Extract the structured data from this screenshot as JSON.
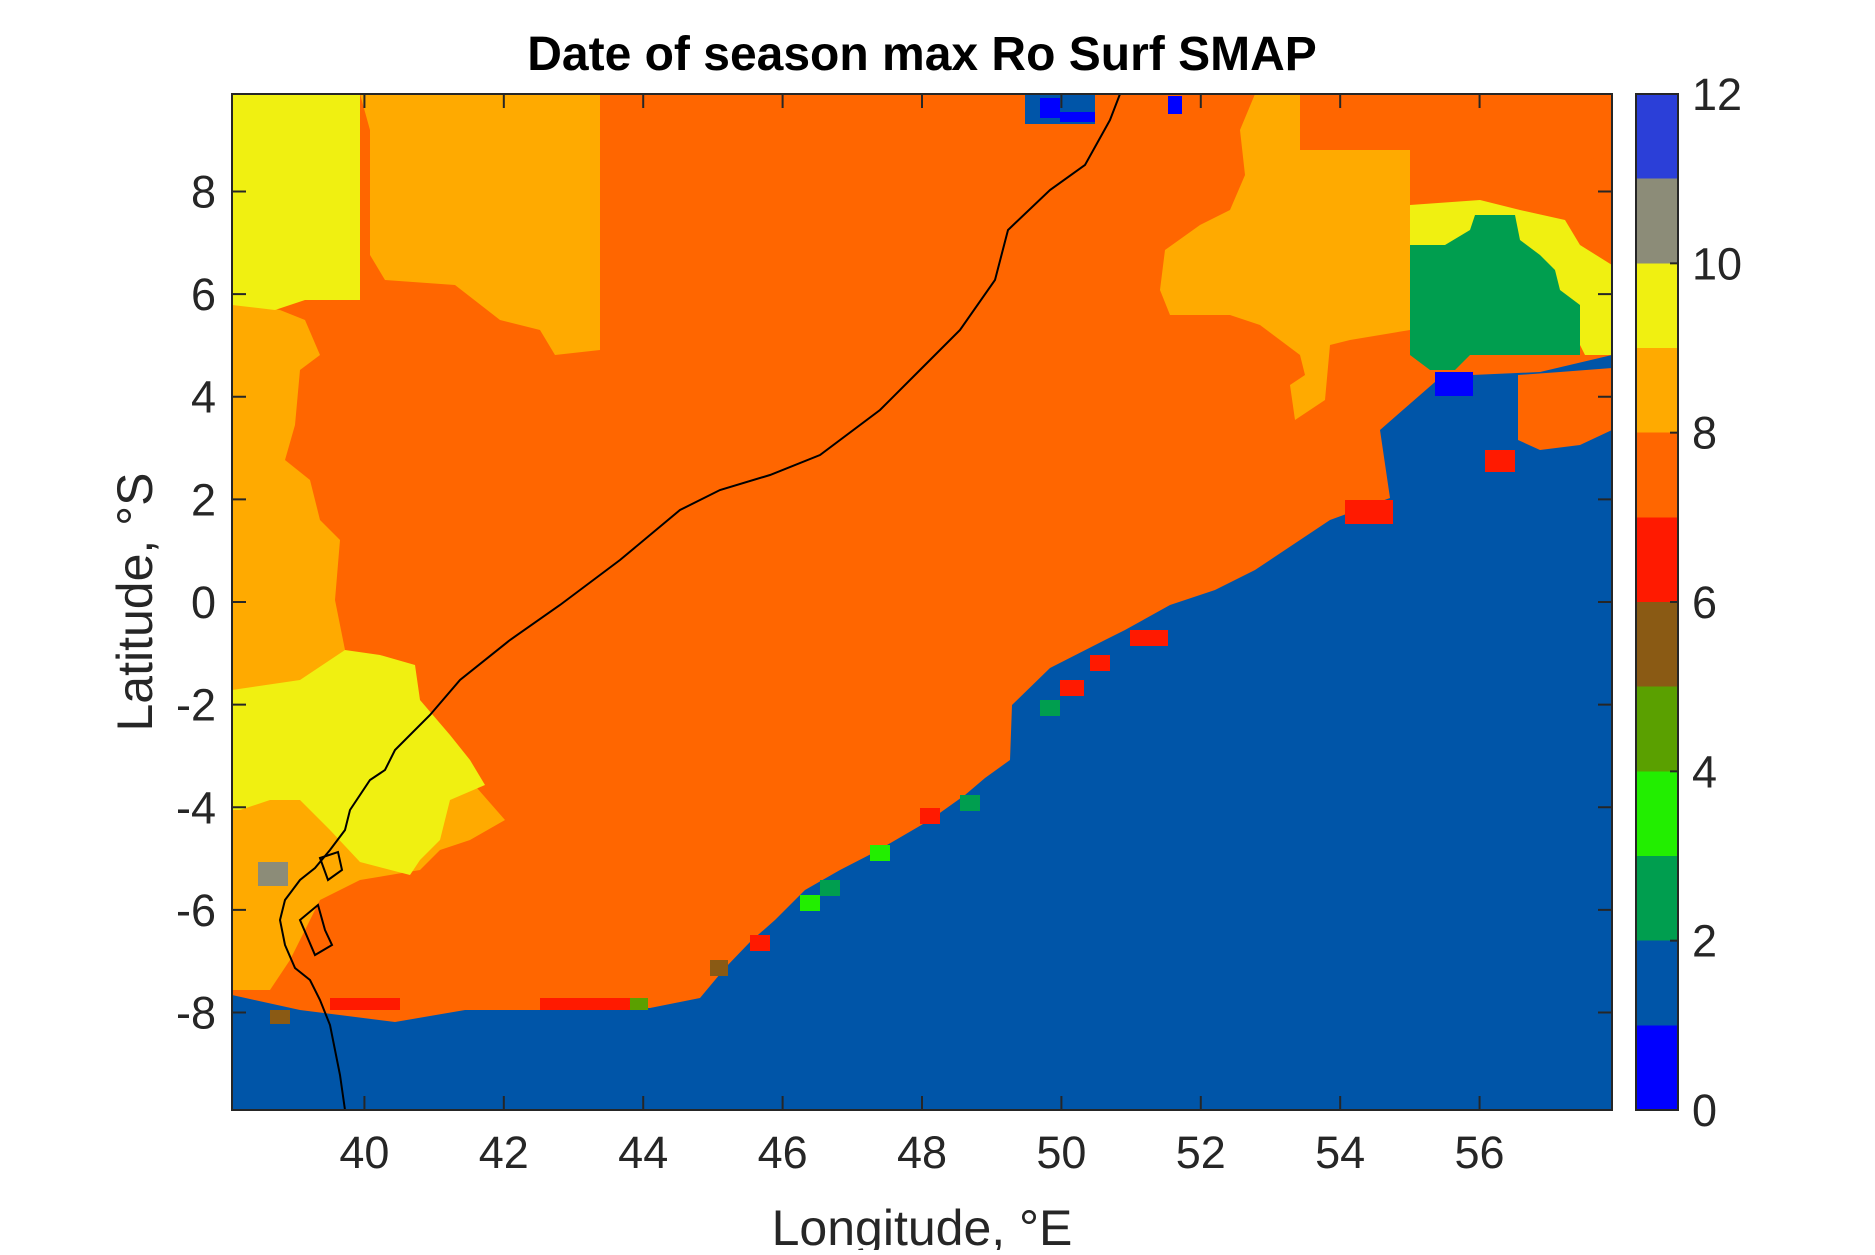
{
  "chart_data": {
    "type": "heatmap",
    "title": "Date of season max Ro Surf SMAP",
    "xlabel": "Longitude, °E",
    "ylabel": "Latitude, °S",
    "xlim": [
      38.1,
      57.9
    ],
    "ylim": [
      -9.9,
      9.9
    ],
    "x_ticks": [
      40,
      42,
      44,
      46,
      48,
      50,
      52,
      54,
      56
    ],
    "y_ticks": [
      8,
      6,
      4,
      2,
      0,
      -2,
      -4,
      -6,
      -8
    ],
    "y_tick_labels": [
      "8",
      "6",
      "4",
      "2",
      "0",
      "-2",
      "-4",
      "-6",
      "-8"
    ],
    "colorbar": {
      "min": 0,
      "max": 12,
      "ticks": [
        "0",
        "2",
        "4",
        "6",
        "8",
        "10",
        "12"
      ],
      "colormap": [
        "#0000ff",
        "#0055a8",
        "#009e4f",
        "#22ee00",
        "#5aa000",
        "#8a5a14",
        "#ff1a00",
        "#ff6600",
        "#ffaa00",
        "#f0f011",
        "#8c8c78",
        "#2b3fd8"
      ]
    },
    "regions": [
      {
        "name": "ocean",
        "value": 1,
        "color": "#0055a8"
      },
      {
        "name": "inland",
        "value": 7.5,
        "color": "#ff6600"
      },
      {
        "name": "west-upland",
        "value": 8.3,
        "color": "#ffaa00"
      },
      {
        "name": "northwest-highland",
        "value": 9,
        "color": "#f0f011"
      },
      {
        "name": "northeast-patch",
        "value": 2,
        "color": "#009e4f"
      },
      {
        "name": "coastal-edge",
        "value": 6,
        "color": "#ff1a00"
      }
    ],
    "grid": false,
    "legend": "none"
  }
}
